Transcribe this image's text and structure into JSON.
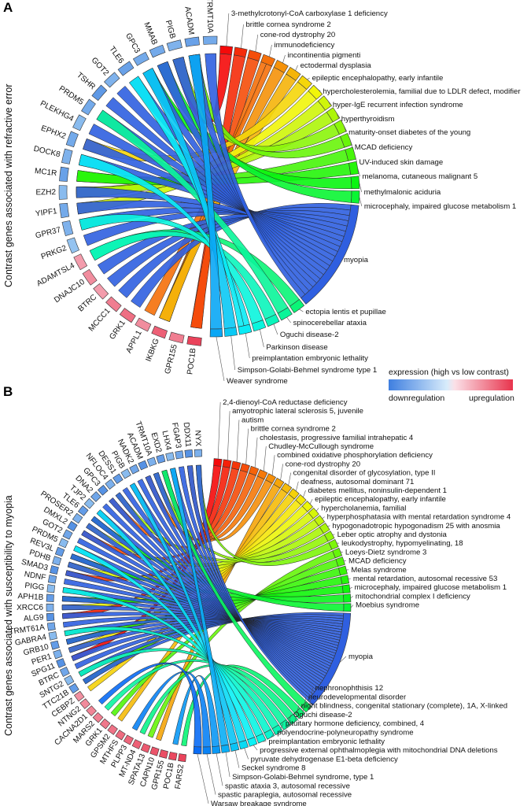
{
  "panel_a": {
    "letter": "A",
    "side_label": "Contrast genes associated with refractive error",
    "genes": [
      "POC1B",
      "GPR155",
      "IKBKG",
      "APPL1",
      "GRK1",
      "MCCC1",
      "BTRC",
      "DNAJC10",
      "ADAMTSL4",
      "PRKG2",
      "GPR37",
      "YIPF1",
      "EZH2",
      "MC1R",
      "DOCK8",
      "EPHX2",
      "PLEKHG4",
      "PRDM5",
      "TSHR",
      "GOT2",
      "TLE6",
      "GPC3",
      "MMAB",
      "PIGB",
      "ACADM",
      "TRMT10A"
    ],
    "diseases": [
      "3-methylcrotonyl-CoA carboxylase 1 deficiency",
      "brittle cornea syndrome 2",
      "cone-rod dystrophy 20",
      "immunodeficiency",
      "incontinentia pigmenti",
      "ectodermal dysplasia",
      "epileptic encephalopathy, early infantile",
      "hypercholesterolemia, familial due to LDLR defect, modifier",
      "hyper-IgE recurrent infection syndrome",
      "hyperthyroidism",
      "maturity-onset diabetes of the young",
      "MCAD deficiency",
      "UV-induced skin damage",
      "melanoma, cutaneous malignant 5",
      "methylmalonic aciduria",
      "microcephaly, impaired glucose metabolism 1",
      "myopia",
      "ectopia lentis et pupillae",
      "spinocerebellar ataxia",
      "Oguchi disease-2",
      "Parkinson disease",
      "preimplantation embryonic lethality",
      "Simpson-Golabi-Behmel syndrome type 1",
      "Weaver syndrome"
    ]
  },
  "panel_b": {
    "letter": "B",
    "side_label": "Contrast genes associated with susceptibility to myopia",
    "genes": [
      "FARS2",
      "POC1B",
      "GPR155",
      "CAPN10",
      "SPATA13",
      "MT-ND4",
      "PLPP3",
      "MTHFS",
      "GPSM2",
      "GRK1",
      "MARS2",
      "CACNA2D1",
      "NTNG2",
      "CEBPZ",
      "TTC21B",
      "SNTG2",
      "BTRC",
      "SPG11",
      "PER1",
      "GRB10",
      "GABRA4",
      "TRMT61A",
      "ALG9",
      "XRCC6",
      "APH1B",
      "PIGG",
      "NDNF",
      "SMAD3",
      "PDHB",
      "REV3L",
      "PRDM5",
      "GOT2",
      "DMXL2",
      "PROSER2",
      "TLE6",
      "TJP2",
      "DNA2",
      "GPC3",
      "NFLOC4",
      "DESS1",
      "PIGB",
      "NADK2",
      "ACADM",
      "TRMT10A",
      "EXD2",
      "LHX4",
      "FGAP3",
      "DDX11",
      "NYX"
    ],
    "diseases": [
      "2,4-dienoyl-CoA reductase deficiency",
      "amyotrophic lateral sclerosis 5, juvenile",
      "autism",
      "brittle cornea syndrome 2",
      "cholestasis, progressive familial intrahepatic 4",
      "Chudley-McCullough syndrome",
      "combined oxidative phosphorylation deficiency",
      "cone-rod dystrophy 20",
      "congenital disorder of glycosylation, type II",
      "deafness, autosomal dominant 71",
      "diabetes mellitus, noninsulin-dependent 1",
      "epileptic encephalopathy, early infantile",
      "hypercholanemia, familial",
      "hyperphosphatasia with mental retardation syndrome 4",
      "hypogonadotropic hypogonadism 25 with anosmia",
      "Leber optic atrophy and dystonia",
      "leukodystrophy, hypomyelinating, 18",
      "Loeys-Dietz syndrome 3",
      "MCAD deficiency",
      "Melas syndrome",
      "mental retardation, autosomal recessive 53",
      "microcephaly, impaired glucose metabolism 1",
      "mitochondrial complex I deficiency",
      "Moebius syndrome",
      "myopia",
      "nephronophthisis 12",
      "neurodevelopmental disorder",
      "night blindness, congenital stationary (complete), 1A, X-linked",
      "Oguchi disease-2",
      "pituitary hormone deficiency, combined, 4",
      "polyendocrine-polyneuropathy syndrome",
      "preimplantation embryonic lethality",
      "progressive external ophthalmoplegia with mitochondrial DNA deletions",
      "pyruvate dehydrogenase E1-beta deficiency",
      "Seckel syndrome 8",
      "Simpson-Golabi-Behmel syndrome, type 1",
      "spastic ataxia 3, autosomal recessive",
      "spastic paraplegia, autosomal recessive",
      "Warsaw breakage syndrome"
    ]
  },
  "legend": {
    "title": "expression (high vs low contrast)",
    "down_label": "downregulation",
    "up_label": "upregulation"
  },
  "colors": {
    "down_dark": "#3f7fe0",
    "down_light": "#a9d4f4",
    "up_light": "#f7c8d4",
    "up_dark": "#e8344d",
    "myopia_blue": "#2f5fe0",
    "ribbon_purple": "#8f35e8",
    "ribbon_magenta": "#e02fd6",
    "ribbon_red": "#e2231a"
  }
}
